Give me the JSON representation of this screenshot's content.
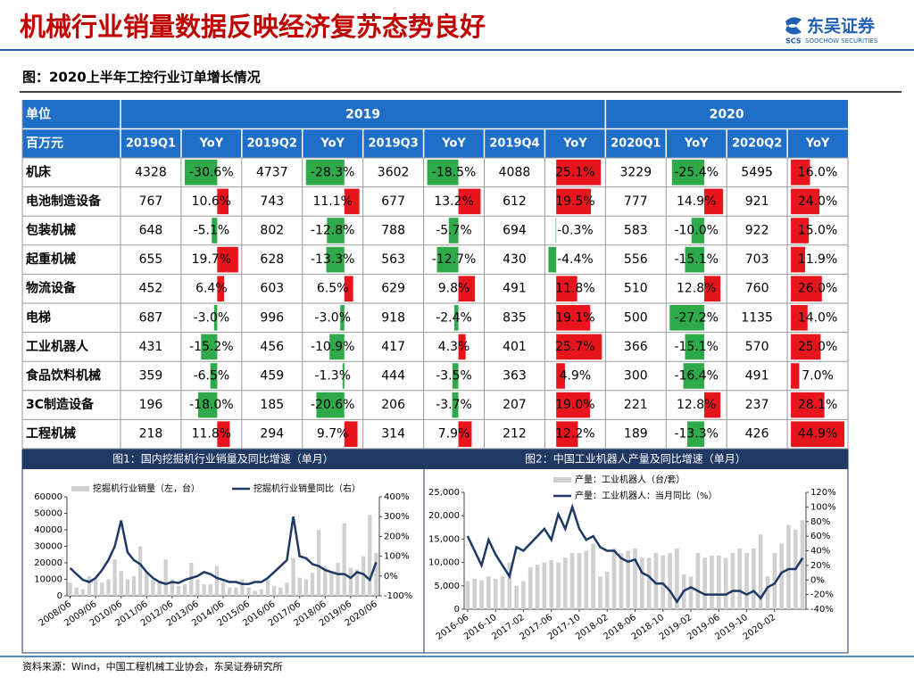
{
  "header": {
    "title": "机械行业销量数据反映经济复苏态势良好",
    "logo": "东吴证券",
    "logo_mark": "SCS",
    "logo_en": "SOOCHOW SECURITIES"
  },
  "figure_title": "图：2020上半年工控行业订单增长情况",
  "table": {
    "unit": "单位",
    "currency": "百万元",
    "years": [
      "2019",
      "2020"
    ],
    "columns": [
      "2019Q1",
      "YoY",
      "2019Q2",
      "YoY",
      "2019Q3",
      "YoY",
      "2019Q4",
      "YoY",
      "2020Q1",
      "YoY",
      "2020Q2",
      "YoY"
    ],
    "rows": [
      {
        "name": "机床",
        "cells": [
          4328,
          {
            "value": -30.6,
            "label": "-30.6%"
          },
          4737,
          {
            "value": -28.3,
            "label": "-28.3%"
          },
          3602,
          {
            "value": -18.5,
            "label": "-18.5%"
          },
          4088,
          {
            "value": 25.1,
            "label": "25.1%"
          },
          3229,
          {
            "value": -25.4,
            "label": "-25.4%"
          },
          5495,
          {
            "value": 16.0,
            "label": "16.0%"
          }
        ]
      },
      {
        "name": "电池制造设备",
        "cells": [
          767,
          {
            "value": 10.6,
            "label": "10.6%"
          },
          743,
          {
            "value": 11.1,
            "label": "11.1%"
          },
          677,
          {
            "value": 13.2,
            "label": "13.2%"
          },
          612,
          {
            "value": 19.5,
            "label": "19.5%"
          },
          777,
          {
            "value": 14.9,
            "label": "14.9%"
          },
          921,
          {
            "value": 24.0,
            "label": "24.0%"
          }
        ]
      },
      {
        "name": "包装机械",
        "cells": [
          648,
          {
            "value": -5.1,
            "label": "-5.1%"
          },
          802,
          {
            "value": -12.8,
            "label": "-12.8%"
          },
          788,
          {
            "value": -5.7,
            "label": "-5.7%"
          },
          694,
          {
            "value": -0.3,
            "label": "-0.3%"
          },
          583,
          {
            "value": -10.0,
            "label": "-10.0%"
          },
          922,
          {
            "value": 15.0,
            "label": "15.0%"
          }
        ]
      },
      {
        "name": "起重机械",
        "cells": [
          655,
          {
            "value": 19.7,
            "label": "19.7%"
          },
          628,
          {
            "value": -13.3,
            "label": "-13.3%"
          },
          563,
          {
            "value": -12.7,
            "label": "-12.7%"
          },
          430,
          {
            "value": -4.4,
            "label": "-4.4%"
          },
          556,
          {
            "value": -15.1,
            "label": "-15.1%"
          },
          703,
          {
            "value": 11.9,
            "label": "11.9%"
          }
        ]
      },
      {
        "name": "物流设备",
        "cells": [
          452,
          {
            "value": 6.4,
            "label": "6.4%"
          },
          603,
          {
            "value": 6.5,
            "label": "6.5%"
          },
          629,
          {
            "value": 9.8,
            "label": "9.8%"
          },
          491,
          {
            "value": 11.8,
            "label": "11.8%"
          },
          510,
          {
            "value": 12.8,
            "label": "12.8%"
          },
          760,
          {
            "value": 26.0,
            "label": "26.0%"
          }
        ]
      },
      {
        "name": "电梯",
        "cells": [
          687,
          {
            "value": -3.0,
            "label": "-3.0%"
          },
          996,
          {
            "value": -3.0,
            "label": "-3.0%"
          },
          918,
          {
            "value": -2.4,
            "label": "-2.4%"
          },
          835,
          {
            "value": 19.1,
            "label": "19.1%"
          },
          500,
          {
            "value": -27.2,
            "label": "-27.2%"
          },
          1135,
          {
            "value": 14.0,
            "label": "14.0%"
          }
        ]
      },
      {
        "name": "工业机器人",
        "cells": [
          431,
          {
            "value": -15.2,
            "label": "-15.2%"
          },
          456,
          {
            "value": -10.9,
            "label": "-10.9%"
          },
          417,
          {
            "value": 4.3,
            "label": "4.3%"
          },
          401,
          {
            "value": 25.7,
            "label": "25.7%"
          },
          366,
          {
            "value": -15.1,
            "label": "-15.1%"
          },
          570,
          {
            "value": 25.0,
            "label": "25.0%"
          }
        ]
      },
      {
        "name": "食品饮料机械",
        "cells": [
          359,
          {
            "value": -6.5,
            "label": "-6.5%"
          },
          459,
          {
            "value": -1.3,
            "label": "-1.3%"
          },
          444,
          {
            "value": -3.5,
            "label": "-3.5%"
          },
          363,
          {
            "value": 4.9,
            "label": "4.9%"
          },
          300,
          {
            "value": -16.4,
            "label": "-16.4%"
          },
          491,
          {
            "value": 7.0,
            "label": "7.0%"
          }
        ]
      },
      {
        "name": "3C制造设备",
        "cells": [
          196,
          {
            "value": -18.0,
            "label": "-18.0%"
          },
          185,
          {
            "value": -20.6,
            "label": "-20.6%"
          },
          206,
          {
            "value": -3.7,
            "label": "-3.7%"
          },
          207,
          {
            "value": 19.0,
            "label": "19.0%"
          },
          221,
          {
            "value": 12.8,
            "label": "12.8%"
          },
          237,
          {
            "value": 28.1,
            "label": "28.1%"
          }
        ]
      },
      {
        "name": "工程机械",
        "cells": [
          218,
          {
            "value": 11.8,
            "label": "11.8%"
          },
          294,
          {
            "value": 9.7,
            "label": "9.7%"
          },
          314,
          {
            "value": 7.9,
            "label": "7.9%"
          },
          212,
          {
            "value": 12.2,
            "label": "12.2%"
          },
          189,
          {
            "value": -13.3,
            "label": "-13.3%"
          },
          426,
          {
            "value": 44.9,
            "label": "44.9%"
          }
        ]
      }
    ]
  },
  "chart_data": [
    {
      "type": "combo",
      "title": "图1：国内挖掘机行业销量及同比增速（单月）",
      "categories": [
        "2008/06",
        null,
        null,
        null,
        "2009/06",
        null,
        null,
        null,
        "2010/06",
        null,
        null,
        null,
        "2011/06",
        null,
        null,
        null,
        "2012/06",
        null,
        null,
        null,
        "2013/06",
        null,
        null,
        null,
        "2014/06",
        null,
        null,
        null,
        "2015/06",
        null,
        null,
        null,
        "2016/06",
        null,
        null,
        null,
        "2017/06",
        null,
        null,
        null,
        "2018/06",
        null,
        null,
        null,
        "2019/06",
        null,
        null,
        null,
        "2020/06"
      ],
      "series": [
        {
          "name": "挖掘机行业销量（左，台）",
          "type": "bar",
          "color": "#d0d0d0",
          "values": [
            8000,
            5000,
            4000,
            12000,
            10000,
            8000,
            10000,
            22000,
            15000,
            10000,
            12000,
            30000,
            15000,
            10000,
            9000,
            22000,
            10000,
            6000,
            7000,
            20000,
            10000,
            7000,
            7000,
            18000,
            8000,
            5000,
            5000,
            10000,
            5000,
            3000,
            4000,
            10000,
            6000,
            5000,
            8000,
            23000,
            11000,
            10000,
            14000,
            40000,
            18000,
            15000,
            20000,
            44000,
            17000,
            16000,
            24000,
            49000,
            26000
          ]
        },
        {
          "name": "挖掘机行业销量同比（右）",
          "type": "line",
          "axis": "y2",
          "color": "#1f3864",
          "values": [
            40,
            10,
            -20,
            -30,
            -10,
            30,
            80,
            150,
            280,
            120,
            80,
            60,
            20,
            -10,
            -30,
            -40,
            -30,
            -35,
            -20,
            -10,
            0,
            20,
            10,
            -10,
            -20,
            -30,
            -30,
            -40,
            -40,
            -30,
            -30,
            -10,
            20,
            50,
            80,
            300,
            100,
            90,
            60,
            50,
            30,
            20,
            10,
            10,
            -10,
            20,
            10,
            -20,
            70
          ]
        }
      ],
      "ylim": [
        0,
        60000
      ],
      "yticks": [
        0,
        10000,
        20000,
        30000,
        40000,
        50000,
        60000
      ],
      "y2lim": [
        -100,
        400
      ],
      "y2ticks": [
        {
          "value": -100,
          "label": "-100%"
        },
        {
          "value": 0,
          "label": "0%"
        },
        {
          "value": 100,
          "label": "100%"
        },
        {
          "value": 200,
          "label": "200%"
        },
        {
          "value": 300,
          "label": "300%"
        },
        {
          "value": 400,
          "label": "400%"
        }
      ],
      "legend": "top"
    },
    {
      "type": "combo",
      "title": "图2：中国工业机器人产量及同比增速（单月）",
      "categories": [
        "2016-06",
        null,
        null,
        null,
        "2016-10",
        null,
        null,
        null,
        "2017-02",
        null,
        null,
        null,
        "2017-06",
        null,
        null,
        null,
        "2017-10",
        null,
        null,
        null,
        "2018-02",
        null,
        null,
        null,
        "2018-06",
        null,
        null,
        null,
        "2018-10",
        null,
        null,
        null,
        "2019-02",
        null,
        null,
        null,
        "2019-06",
        null,
        null,
        null,
        "2019-10",
        null,
        null,
        null,
        "2020-02",
        null,
        null,
        null,
        null
      ],
      "series": [
        {
          "name": "产量：工业机器人（台/套）",
          "type": "bar",
          "color": "#d0d0d0",
          "values": [
            6000,
            6500,
            6200,
            7000,
            6500,
            7000,
            10000,
            5000,
            6000,
            9000,
            9500,
            10000,
            10500,
            10000,
            11000,
            12000,
            12000,
            12500,
            14000,
            7000,
            8000,
            13000,
            12000,
            12500,
            13000,
            11000,
            11000,
            12000,
            11500,
            12000,
            13000,
            7500,
            7000,
            12000,
            11000,
            11500,
            11500,
            11000,
            12000,
            13000,
            12000,
            13000,
            16000,
            7000,
            12000,
            14000,
            18000,
            17000,
            19000
          ]
        },
        {
          "name": "产量：工业机器人：当月同比（%）",
          "type": "line",
          "axis": "y2",
          "color": "#1f3864",
          "values": [
            60,
            40,
            20,
            55,
            35,
            20,
            5,
            45,
            40,
            50,
            60,
            70,
            55,
            90,
            70,
            100,
            70,
            55,
            60,
            45,
            40,
            40,
            30,
            25,
            28,
            10,
            5,
            -5,
            -5,
            -15,
            -30,
            -15,
            -10,
            -15,
            -20,
            -20,
            -20,
            -20,
            -15,
            -15,
            -20,
            -15,
            -25,
            -10,
            -5,
            10,
            15,
            15,
            30
          ]
        }
      ],
      "ylim": [
        0,
        25000
      ],
      "yticks": [
        0,
        {
          "value": 5000,
          "label": "5,000"
        },
        {
          "value": 10000,
          "label": "10,000"
        },
        {
          "value": 15000,
          "label": "15,000"
        },
        {
          "value": 20000,
          "label": "20,000"
        },
        {
          "value": 25000,
          "label": "25,000"
        }
      ],
      "y2lim": [
        -40,
        120
      ],
      "y2ticks": [
        {
          "value": -40,
          "label": "-40%"
        },
        {
          "value": -20,
          "label": "-20%"
        },
        {
          "value": 0,
          "label": "0%"
        },
        {
          "value": 20,
          "label": "20%"
        },
        {
          "value": 40,
          "label": "40%"
        },
        {
          "value": 60,
          "label": "60%"
        },
        {
          "value": 80,
          "label": "80%"
        },
        {
          "value": 100,
          "label": "100%"
        },
        {
          "value": 120,
          "label": "120%"
        }
      ],
      "legend": "top"
    }
  ],
  "source": "资料来源：Wind，中国工程机械工业协会，东吴证券研究所"
}
